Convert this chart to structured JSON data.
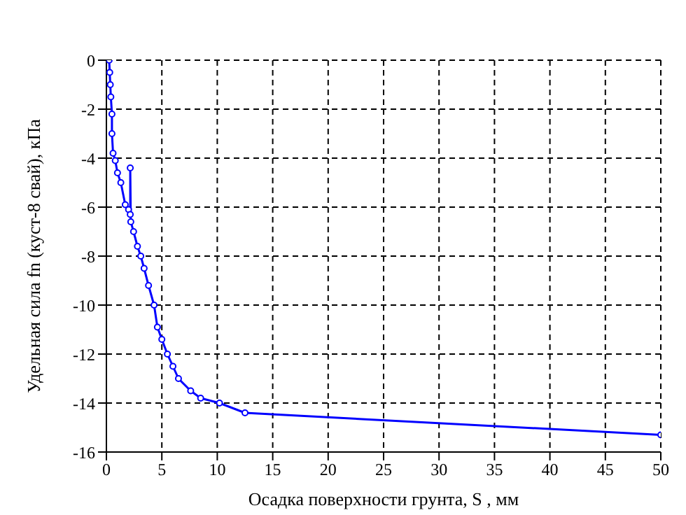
{
  "chart_data": {
    "type": "line",
    "xlabel": "Осадка поверхности грунта, S , мм",
    "ylabel": "Удельная сила fn (куст-8 свай), кПа",
    "x": [
      0.25,
      0.3,
      0.35,
      0.4,
      0.5,
      0.5,
      0.6,
      0.8,
      1.0,
      1.3,
      1.7,
      2.0,
      2.15,
      2.15,
      2.2,
      2.45,
      2.8,
      3.1,
      3.4,
      3.8,
      4.3,
      4.6,
      5.0,
      5.5,
      6.0,
      6.5,
      7.6,
      8.5,
      10.2,
      12.5,
      50
    ],
    "series": [
      {
        "color": "#0000ff",
        "values": [
          0,
          -0.5,
          -1,
          -1.5,
          -2.2,
          -3,
          -3.8,
          -4.1,
          -4.6,
          -5.0,
          -5.9,
          -6.1,
          -6.3,
          -4.4,
          -6.6,
          -7.0,
          -7.6,
          -8.0,
          -8.5,
          -9.2,
          -10.0,
          -10.9,
          -11.4,
          -12.0,
          -12.5,
          -13.0,
          -13.5,
          -13.8,
          -14.0,
          -14.4,
          -15.3
        ]
      }
    ],
    "xlim": [
      0,
      50
    ],
    "xticks": [
      0,
      5,
      10,
      15,
      20,
      25,
      30,
      35,
      40,
      45,
      50
    ],
    "ylim": [
      -16,
      0
    ],
    "yticks": [
      -16,
      -14,
      -12,
      -10,
      -8,
      -6,
      -4,
      -2,
      0
    ],
    "grid": true,
    "marker": "circle",
    "line_style": "solid"
  }
}
